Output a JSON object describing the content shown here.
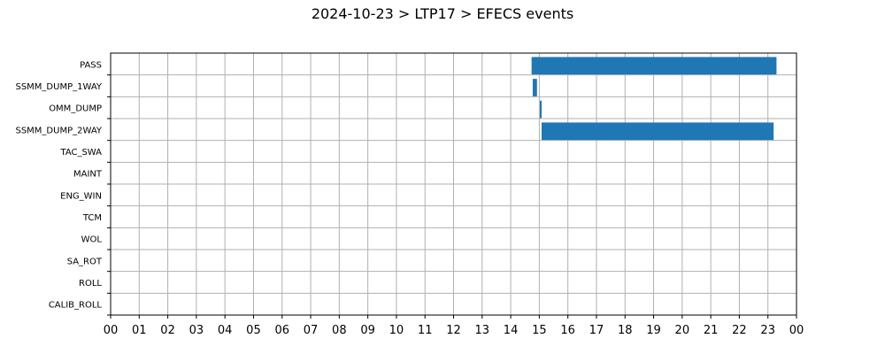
{
  "chart_data": {
    "type": "bar",
    "orientation": "horizontal",
    "title": "2024-10-23 > LTP17 > EFECS events",
    "xlabel": "",
    "ylabel": "",
    "x_unit": "hour",
    "xlim": [
      0,
      24
    ],
    "x_tick_labels": [
      "00",
      "01",
      "02",
      "03",
      "04",
      "05",
      "06",
      "07",
      "08",
      "09",
      "10",
      "11",
      "12",
      "13",
      "14",
      "15",
      "16",
      "17",
      "18",
      "19",
      "20",
      "21",
      "22",
      "23",
      "00"
    ],
    "categories": [
      "PASS",
      "SSMM_DUMP_1WAY",
      "OMM_DUMP",
      "SSMM_DUMP_2WAY",
      "TAC_SWA",
      "MAINT",
      "ENG_WIN",
      "TCM",
      "WOL",
      "SA_ROT",
      "ROLL",
      "CALIB_ROLL"
    ],
    "series": [
      {
        "color": "#1f77b4",
        "intervals": [
          {
            "category": "PASS",
            "start": 14.73,
            "end": 23.3
          },
          {
            "category": "SSMM_DUMP_1WAY",
            "start": 14.77,
            "end": 14.92
          },
          {
            "category": "OMM_DUMP",
            "start": 15.02,
            "end": 15.08
          },
          {
            "category": "SSMM_DUMP_2WAY",
            "start": 15.08,
            "end": 23.2
          }
        ]
      }
    ],
    "grid": true,
    "legend": "none"
  }
}
